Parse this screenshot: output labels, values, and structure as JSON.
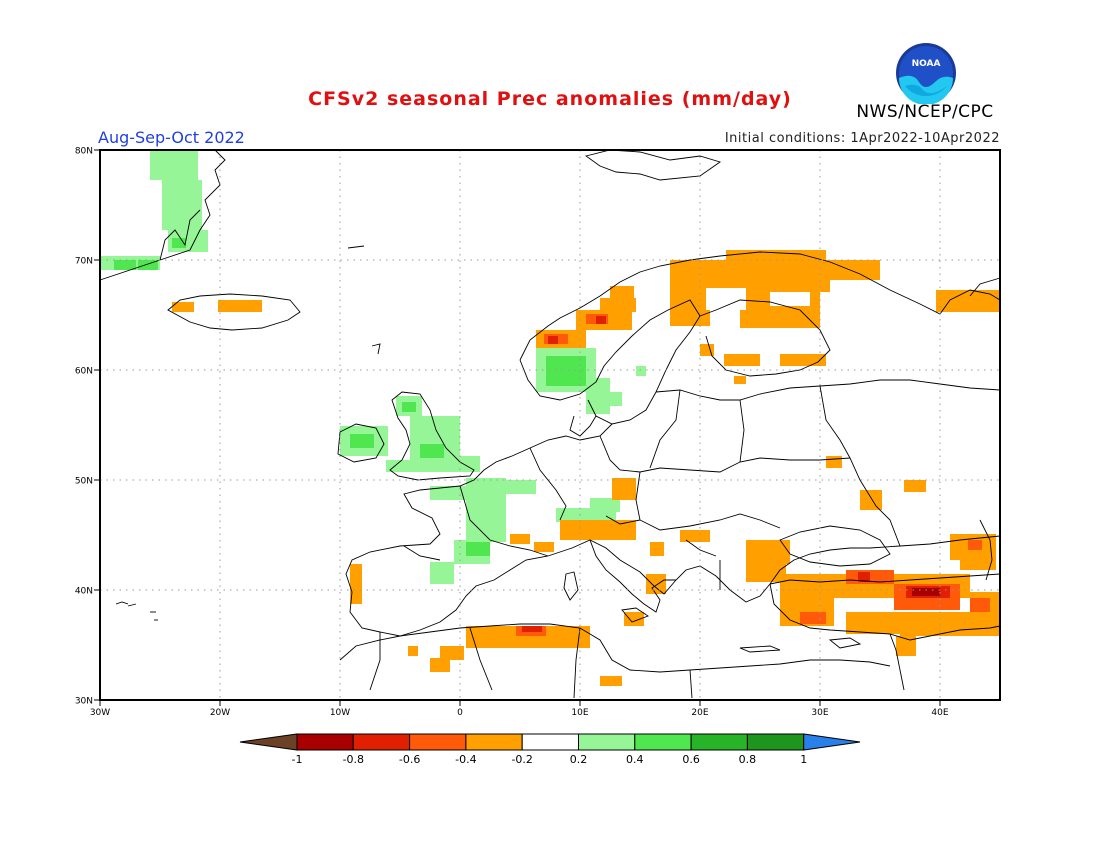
{
  "header": {
    "title": "CFSv2 seasonal Prec anomalies (mm/day)",
    "season": "Aug-Sep-Oct 2022",
    "initial_conditions": "Initial conditions: 1Apr2022-10Apr2022",
    "organization": "NWS/NCEP/CPC",
    "logo_text": "NOAA"
  },
  "map": {
    "lat_labels": [
      "80N",
      "70N",
      "60N",
      "50N",
      "40N",
      "30N"
    ],
    "lon_labels": [
      "30W",
      "20W",
      "10W",
      "0",
      "10E",
      "20E",
      "30E",
      "40E"
    ],
    "grid": true,
    "grid_style": "dotted"
  },
  "colorbar": {
    "tick_labels": [
      "-1",
      "-0.8",
      "-0.6",
      "-0.4",
      "-0.2",
      "0.2",
      "0.4",
      "0.6",
      "0.8",
      "1"
    ],
    "colors": {
      "lt_-1": "#6b4226",
      "-1_-0.8": "#a80000",
      "-0.8_-0.6": "#e02000",
      "-0.6_-0.4": "#ff5a0a",
      "-0.4_-0.2": "#ffa000",
      "-0.2_0.2": "#ffffff",
      "0.2_0.4": "#96f596",
      "0.4_0.6": "#50e650",
      "0.6_0.8": "#28b428",
      "0.8_1": "#1e961e",
      "gt_1": "#2a80ea"
    }
  }
}
